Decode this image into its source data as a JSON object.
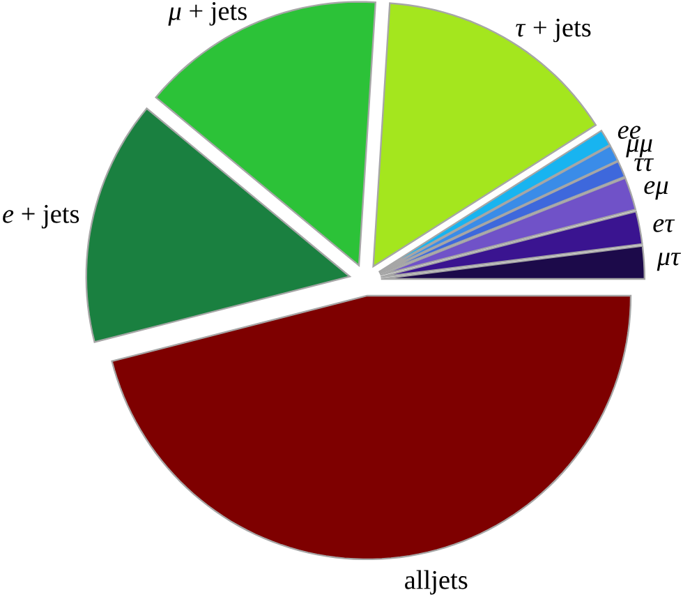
{
  "chart_data": {
    "type": "pie",
    "categories": [
      "*μτ*",
      "*eτ*",
      "*eμ*",
      "*ττ*",
      "*μμ*",
      "*ee*",
      "*τ* + jets",
      "*μ* + jets",
      "*e* + jets",
      "alljets"
    ],
    "values": [
      2,
      2,
      2,
      1,
      1,
      1,
      15,
      15,
      15,
      46
    ],
    "colors": [
      "#1c0a4a",
      "#3a1490",
      "#7052c8",
      "#3e68dc",
      "#3a8ce8",
      "#18b4f0",
      "#a4e61e",
      "#2cc238",
      "#1a8040",
      "#7e0000"
    ]
  }
}
